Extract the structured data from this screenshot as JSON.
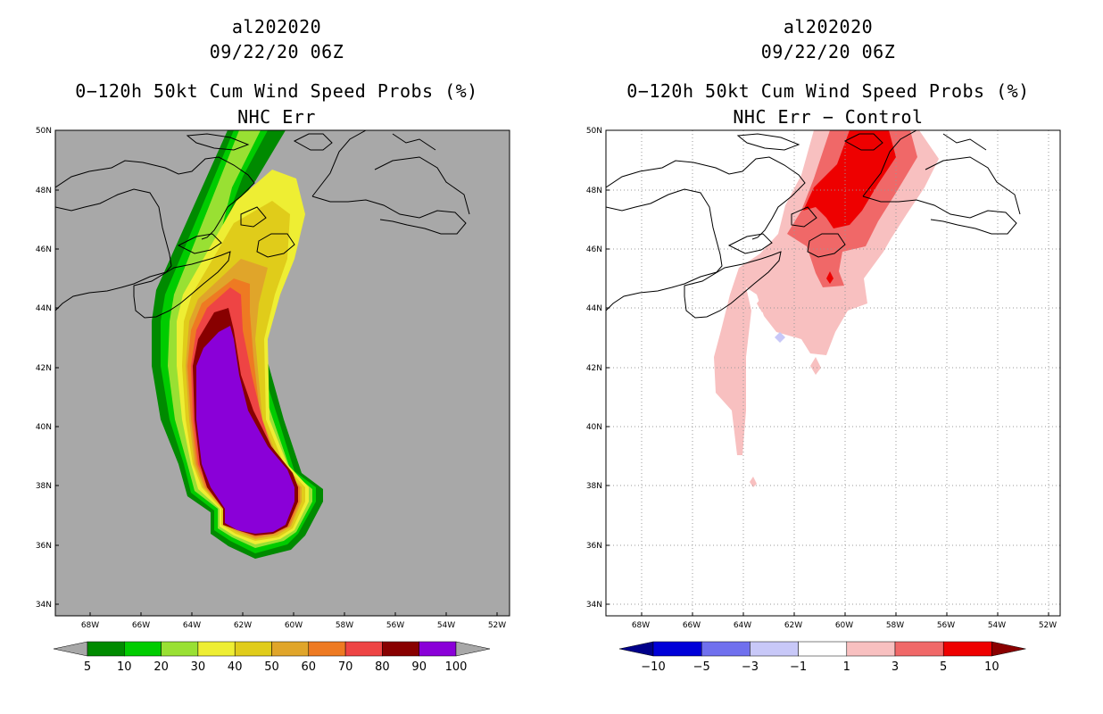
{
  "chart_data": [
    {
      "type": "heatmap",
      "storm": "al202020",
      "datetime": "09/22/20 06Z",
      "title": "0−120h 50kt Cum Wind Speed Probs (%)",
      "subtitle": "NHC Err",
      "x_ticks": [
        "68W",
        "66W",
        "64W",
        "62W",
        "60W",
        "58W",
        "56W",
        "54W",
        "52W"
      ],
      "y_ticks": [
        "34N",
        "36N",
        "38N",
        "40N",
        "42N",
        "44N",
        "46N",
        "48N",
        "50N"
      ],
      "xlim": [
        -69.2,
        -51.5
      ],
      "ylim": [
        33.6,
        50.0
      ],
      "grid": false,
      "background": "#a8a8a8",
      "colorbar": {
        "labels": [
          "5",
          "10",
          "20",
          "30",
          "40",
          "50",
          "60",
          "70",
          "80",
          "90",
          "100"
        ],
        "colors": [
          "#008a00",
          "#00cc00",
          "#99e033",
          "#eeee33",
          "#e0cc1a",
          "#e0a52a",
          "#ee7a22",
          "#ee4444",
          "#880000",
          "#8a00d8"
        ],
        "under_color": "#a8a8a8",
        "over_color": "#a8a8a8"
      },
      "probability_bands_percent": [
        5,
        10,
        20,
        30,
        40,
        50,
        60,
        70,
        80,
        90
      ]
    },
    {
      "type": "heatmap",
      "storm": "al202020",
      "datetime": "09/22/20 06Z",
      "title": "0−120h 50kt Cum Wind Speed Probs (%)",
      "subtitle": "NHC Err − Control",
      "x_ticks": [
        "68W",
        "66W",
        "64W",
        "62W",
        "60W",
        "58W",
        "56W",
        "54W",
        "52W"
      ],
      "y_ticks": [
        "34N",
        "36N",
        "38N",
        "40N",
        "42N",
        "44N",
        "46N",
        "48N",
        "50N"
      ],
      "xlim": [
        -69.2,
        -51.5
      ],
      "ylim": [
        33.6,
        50.0
      ],
      "grid": true,
      "background": "#ffffff",
      "colorbar": {
        "labels": [
          "−10",
          "−5",
          "−3",
          "−1",
          "1",
          "3",
          "5",
          "10"
        ],
        "colors": [
          "#0000d8",
          "#7070ee",
          "#c8c8f8",
          "#ffffff",
          "#f8c0c0",
          "#f06868",
          "#ee0000"
        ],
        "under_color": "#00008a",
        "over_color": "#8a0000"
      },
      "difference_bands_percent": [
        1,
        3,
        5,
        -3
      ]
    }
  ]
}
